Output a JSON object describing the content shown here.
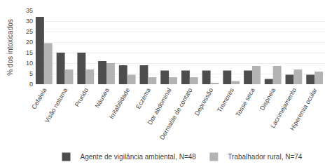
{
  "chart_data": {
    "type": "bar",
    "categories": [
      "Cefaleia",
      "Visão noturna",
      "Prurido",
      "Náusea",
      "Irritabilidade",
      "Eczema",
      "Dor abdominal",
      "Dermatite de contato",
      "Depressão",
      "Tremores",
      "Tosse seca",
      "Dispneia",
      "Lacrimejamento",
      "Hiperemia ocular"
    ],
    "series": [
      {
        "name": "Agente de vigilância ambiental, N=48",
        "color": "#4d4d4d",
        "values": [
          32,
          15,
          15,
          11,
          9,
          9,
          6.5,
          6.5,
          6.5,
          6.5,
          6.5,
          2.5,
          4.5,
          4.5
        ]
      },
      {
        "name": "Trabalhador rural, N=74",
        "color": "#b3b3b3",
        "values": [
          19.5,
          7,
          7,
          10,
          4.5,
          3.3,
          3.3,
          3.3,
          0.5,
          1.5,
          8.7,
          8.7,
          7,
          6
        ]
      }
    ],
    "ylabel": "% dos intoxicados",
    "ylim": [
      0,
      35
    ],
    "yticks": [
      0,
      5,
      10,
      15,
      20,
      25,
      30,
      35
    ],
    "grid": true,
    "legend": "bottom"
  }
}
